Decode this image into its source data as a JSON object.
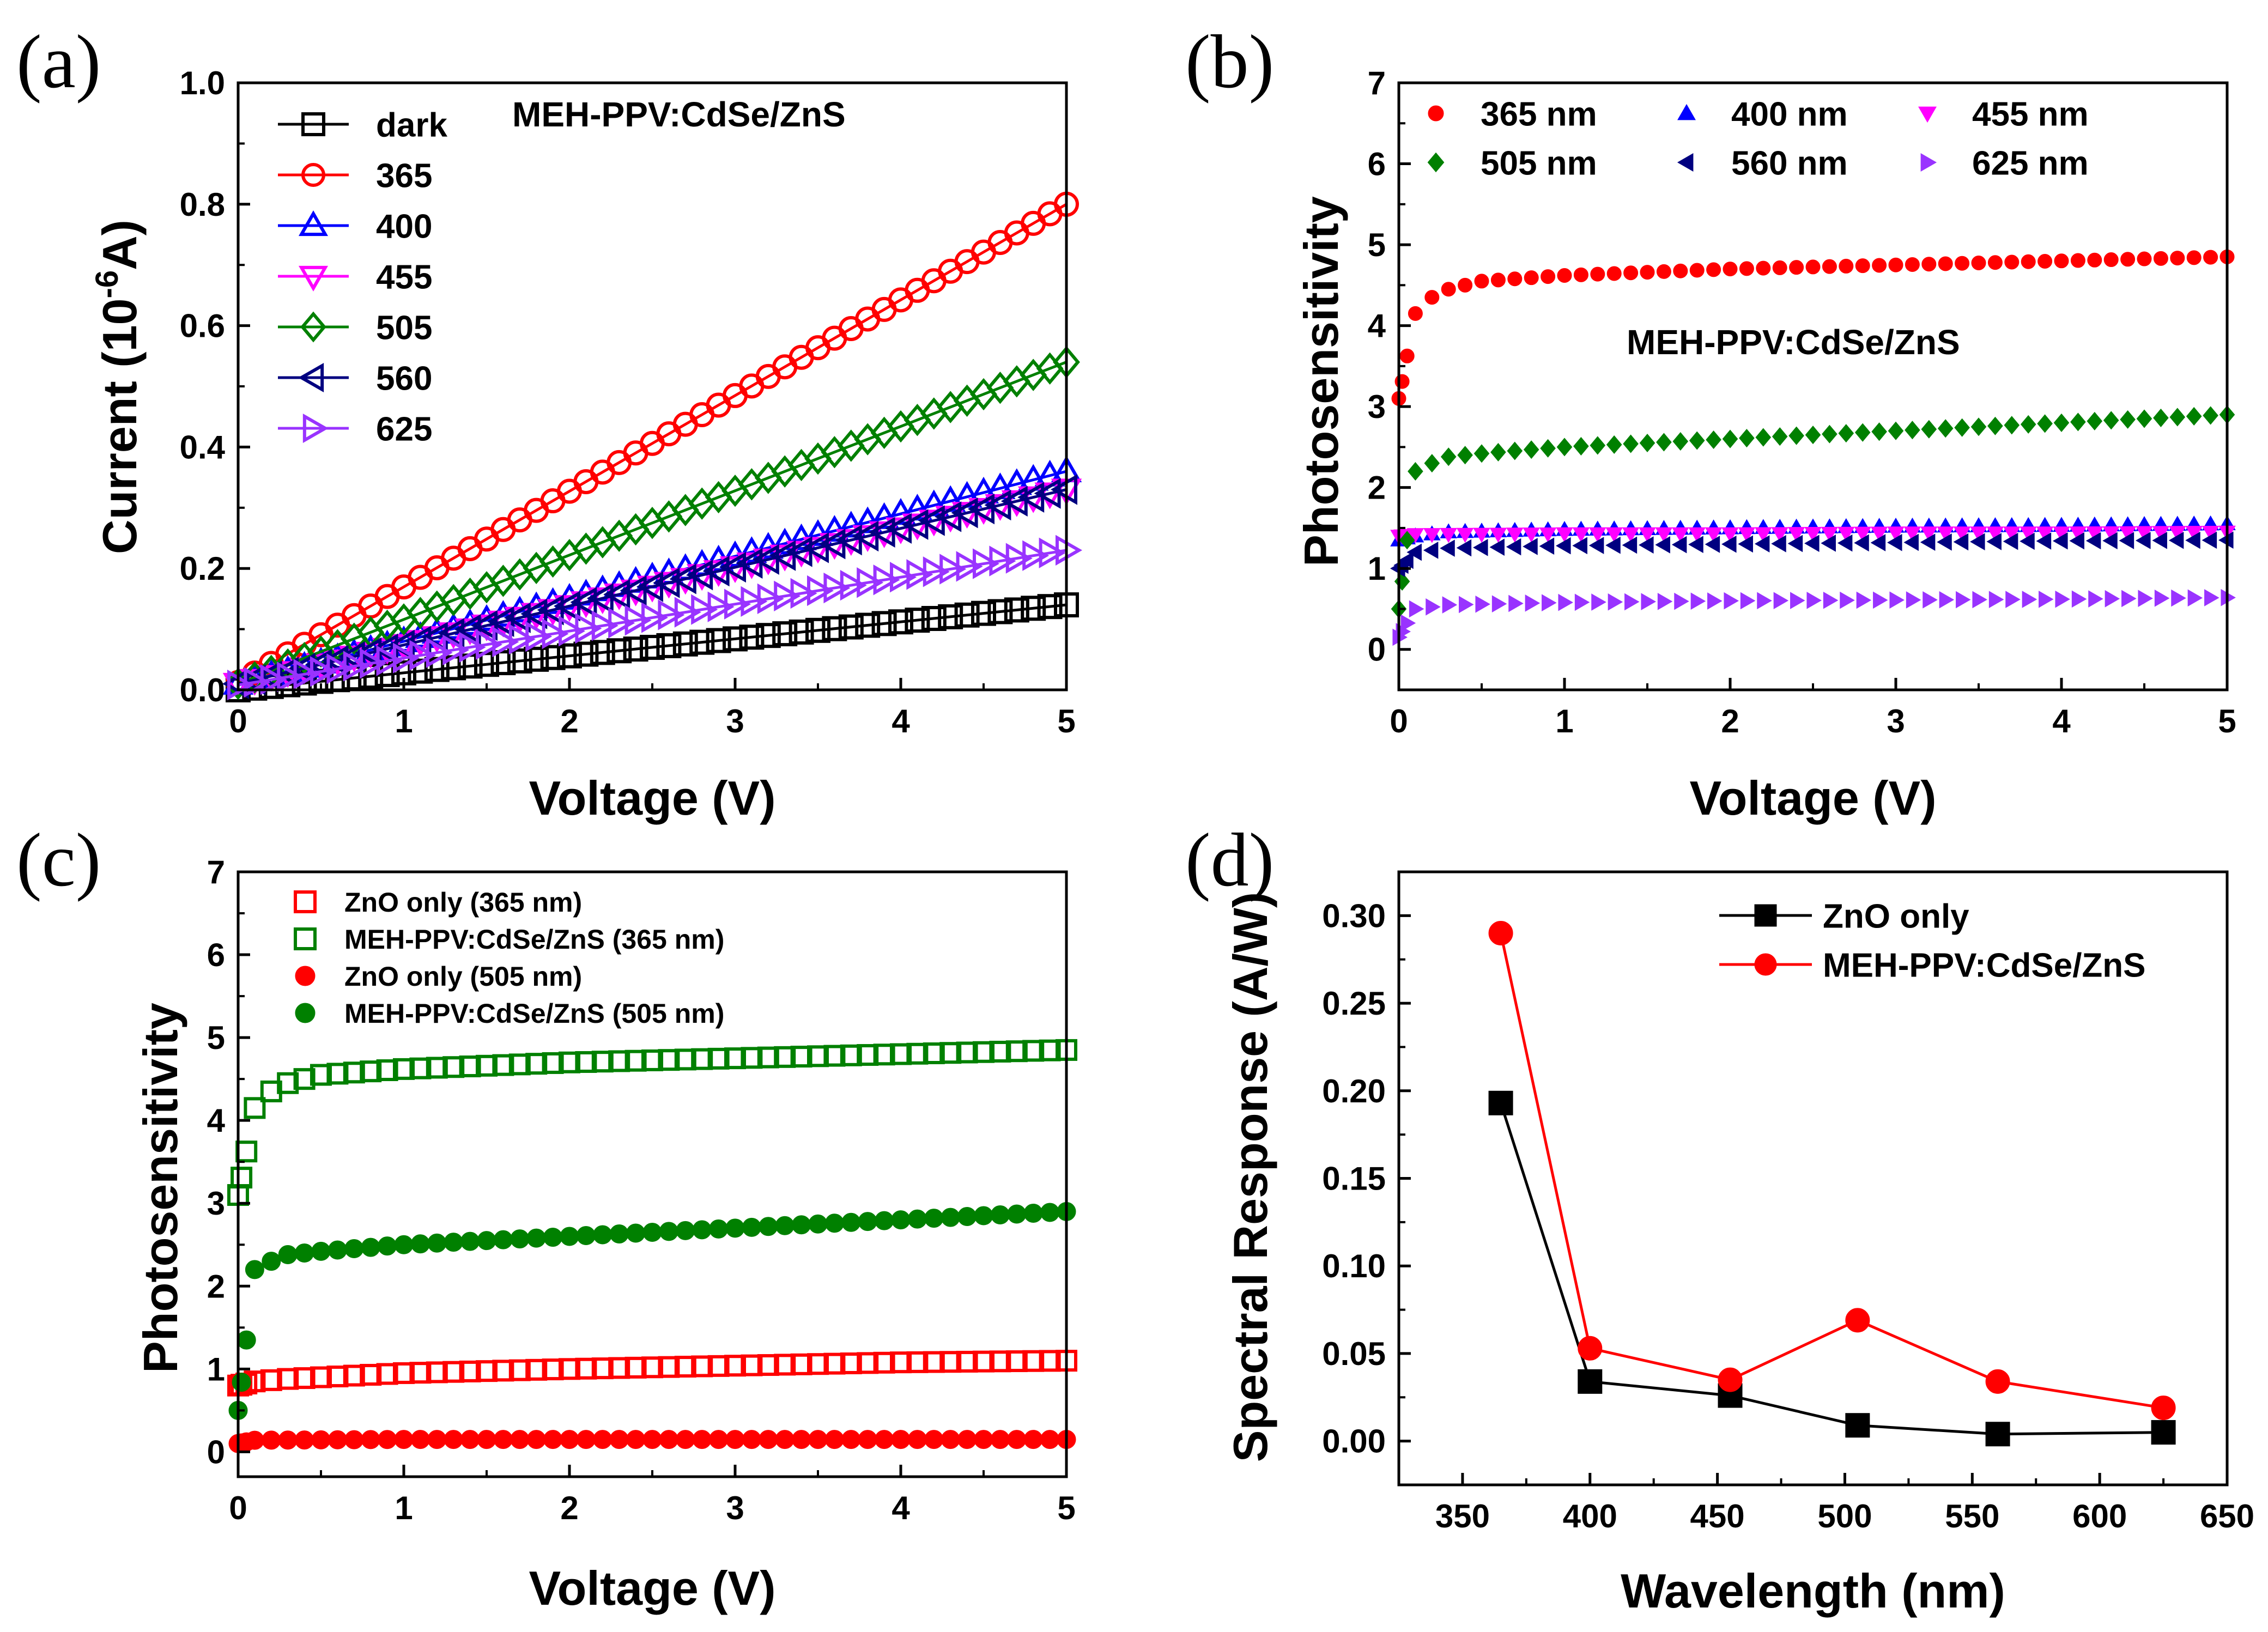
{
  "chart_data": [
    {
      "id": "a",
      "panel_label": "(a)",
      "type": "line",
      "xlabel": "Voltage (V)",
      "ylabel_main": "Current (10",
      "ylabel_sup": "-6",
      "ylabel_end": "A)",
      "xlim": [
        0,
        5
      ],
      "ylim": [
        0,
        1.0
      ],
      "xticks": [
        0,
        1,
        2,
        3,
        4,
        5
      ],
      "xtick_labels": [
        "0",
        "1",
        "2",
        "3",
        "4",
        "5"
      ],
      "yticks": [
        0,
        0.2,
        0.4,
        0.6,
        0.8,
        1.0
      ],
      "ytick_labels": [
        "0.0",
        "0.2",
        "0.4",
        "0.6",
        "0.8",
        "1.0"
      ],
      "annotation": "MEH-PPV:CdSe/ZnS",
      "legend_position": "top-left",
      "series": [
        {
          "name": "dark",
          "color": "#000000",
          "marker": "square-open",
          "x": [
            0,
            5
          ],
          "y": [
            0.0,
            0.14
          ]
        },
        {
          "name": "365",
          "color": "#ff0000",
          "marker": "circle-open",
          "x": [
            0,
            5
          ],
          "y": [
            0.012,
            0.8
          ]
        },
        {
          "name": "400",
          "color": "#0000ff",
          "marker": "triangle-up-open",
          "x": [
            0,
            5
          ],
          "y": [
            0.01,
            0.36
          ]
        },
        {
          "name": "455",
          "color": "#ff00ff",
          "marker": "triangle-down-open",
          "x": [
            0,
            5
          ],
          "y": [
            0.01,
            0.33
          ]
        },
        {
          "name": "505",
          "color": "#008000",
          "marker": "diamond-open",
          "x": [
            0,
            5
          ],
          "y": [
            0.01,
            0.54
          ]
        },
        {
          "name": "560",
          "color": "#000080",
          "marker": "triangle-left-open",
          "x": [
            0,
            5
          ],
          "y": [
            0.01,
            0.33
          ]
        },
        {
          "name": "625",
          "color": "#9933ff",
          "marker": "triangle-right-open",
          "x": [
            0,
            5
          ],
          "y": [
            0.008,
            0.23
          ]
        }
      ]
    },
    {
      "id": "b",
      "panel_label": "(b)",
      "type": "scatter",
      "xlabel": "Voltage (V)",
      "ylabel": "Photosensitivity",
      "xlim": [
        0,
        5
      ],
      "ylim": [
        -0.5,
        7
      ],
      "xticks": [
        0,
        1,
        2,
        3,
        4,
        5
      ],
      "xtick_labels": [
        "0",
        "1",
        "2",
        "3",
        "4",
        "5"
      ],
      "yticks": [
        0,
        1,
        2,
        3,
        4,
        5,
        6,
        7
      ],
      "ytick_labels": [
        "0",
        "1",
        "2",
        "3",
        "4",
        "5",
        "6",
        "7"
      ],
      "annotation": "MEH-PPV:CdSe/ZnS",
      "legend_position": "top",
      "series": [
        {
          "name": "365 nm",
          "color": "#ff0000",
          "marker": "circle-filled",
          "x": [
            0,
            0.1,
            0.2,
            0.3,
            0.5,
            1,
            2,
            3,
            4,
            5
          ],
          "y": [
            3.1,
            4.15,
            4.35,
            4.45,
            4.55,
            4.62,
            4.7,
            4.75,
            4.8,
            4.85
          ]
        },
        {
          "name": "400 nm",
          "color": "#0000ff",
          "marker": "triangle-up-filled",
          "x": [
            0,
            0.1,
            0.3,
            1,
            2,
            3,
            4,
            5
          ],
          "y": [
            1.35,
            1.4,
            1.45,
            1.48,
            1.5,
            1.52,
            1.53,
            1.55
          ]
        },
        {
          "name": "455 nm",
          "color": "#ff00ff",
          "marker": "triangle-down-filled",
          "x": [
            0,
            0.1,
            1,
            2,
            3,
            4,
            5
          ],
          "y": [
            1.4,
            1.42,
            1.43,
            1.43,
            1.44,
            1.44,
            1.45
          ]
        },
        {
          "name": "505 nm",
          "color": "#008000",
          "marker": "diamond-filled",
          "x": [
            0,
            0.1,
            0.2,
            0.3,
            0.5,
            1,
            2,
            3,
            4,
            5
          ],
          "y": [
            0.5,
            2.2,
            2.3,
            2.38,
            2.42,
            2.5,
            2.6,
            2.7,
            2.8,
            2.9
          ]
        },
        {
          "name": "560 nm",
          "color": "#000080",
          "marker": "triangle-left-filled",
          "x": [
            0,
            0.1,
            0.3,
            1,
            2,
            3,
            4,
            5
          ],
          "y": [
            1.0,
            1.2,
            1.25,
            1.28,
            1.3,
            1.32,
            1.34,
            1.35
          ]
        },
        {
          "name": "625 nm",
          "color": "#9933ff",
          "marker": "triangle-right-filled",
          "x": [
            0,
            0.1,
            0.3,
            1,
            2,
            3,
            4,
            5
          ],
          "y": [
            0.15,
            0.5,
            0.55,
            0.58,
            0.6,
            0.61,
            0.62,
            0.64
          ]
        }
      ]
    },
    {
      "id": "c",
      "panel_label": "(c)",
      "type": "scatter",
      "xlabel": "Voltage (V)",
      "ylabel": "Photosensitivity",
      "xlim": [
        0,
        5
      ],
      "ylim": [
        -0.3,
        7
      ],
      "xticks": [
        0,
        1,
        2,
        3,
        4,
        5
      ],
      "xtick_labels": [
        "0",
        "1",
        "2",
        "3",
        "4",
        "5"
      ],
      "yticks": [
        0,
        1,
        2,
        3,
        4,
        5,
        6,
        7
      ],
      "ytick_labels": [
        "0",
        "1",
        "2",
        "3",
        "4",
        "5",
        "6",
        "7"
      ],
      "legend_position": "top-left",
      "series": [
        {
          "name": "ZnO only (365 nm)",
          "color": "#ff0000",
          "marker": "square-open",
          "x": [
            0,
            0.1,
            0.3,
            1,
            2,
            3,
            4,
            5
          ],
          "y": [
            0.8,
            0.85,
            0.88,
            0.95,
            1.0,
            1.04,
            1.08,
            1.1
          ]
        },
        {
          "name": "MEH-PPV:CdSe/ZnS (365 nm)",
          "color": "#008000",
          "marker": "square-open",
          "x": [
            0,
            0.1,
            0.2,
            0.3,
            0.5,
            1,
            2,
            3,
            4,
            5
          ],
          "y": [
            3.1,
            4.15,
            4.35,
            4.45,
            4.55,
            4.62,
            4.7,
            4.75,
            4.8,
            4.85
          ]
        },
        {
          "name": "ZnO only (505 nm)",
          "color": "#ff0000",
          "marker": "circle-filled",
          "x": [
            0,
            0.1,
            1,
            2,
            3,
            4,
            5
          ],
          "y": [
            0.1,
            0.14,
            0.15,
            0.15,
            0.15,
            0.15,
            0.15
          ]
        },
        {
          "name": "MEH-PPV:CdSe/ZnS (505 nm)",
          "color": "#008000",
          "marker": "circle-filled",
          "x": [
            0,
            0.1,
            0.2,
            0.3,
            0.5,
            1,
            2,
            3,
            4,
            5
          ],
          "y": [
            0.5,
            2.2,
            2.3,
            2.38,
            2.42,
            2.5,
            2.6,
            2.7,
            2.8,
            2.9
          ]
        }
      ]
    },
    {
      "id": "d",
      "panel_label": "(d)",
      "type": "line",
      "xlabel": "Wavelength (nm)",
      "ylabel": "Spectral Response (A/W)",
      "xlim": [
        325,
        650
      ],
      "ylim": [
        -0.025,
        0.325
      ],
      "xticks": [
        350,
        400,
        450,
        500,
        550,
        600,
        650
      ],
      "xtick_labels": [
        "350",
        "400",
        "450",
        "500",
        "550",
        "600",
        "650"
      ],
      "yticks": [
        0,
        0.05,
        0.1,
        0.15,
        0.2,
        0.25,
        0.3
      ],
      "ytick_labels": [
        "0.00",
        "0.05",
        "0.10",
        "0.15",
        "0.20",
        "0.25",
        "0.30"
      ],
      "legend_position": "top-right",
      "series": [
        {
          "name": "ZnO only",
          "color": "#000000",
          "marker": "square-filled",
          "x": [
            365,
            400,
            455,
            505,
            560,
            625
          ],
          "y": [
            0.193,
            0.034,
            0.026,
            0.009,
            0.004,
            0.005
          ]
        },
        {
          "name": "MEH-PPV:CdSe/ZnS",
          "color": "#ff0000",
          "marker": "circle-filled",
          "x": [
            365,
            400,
            455,
            505,
            560,
            625
          ],
          "y": [
            0.29,
            0.053,
            0.035,
            0.069,
            0.034,
            0.019
          ]
        }
      ]
    }
  ]
}
